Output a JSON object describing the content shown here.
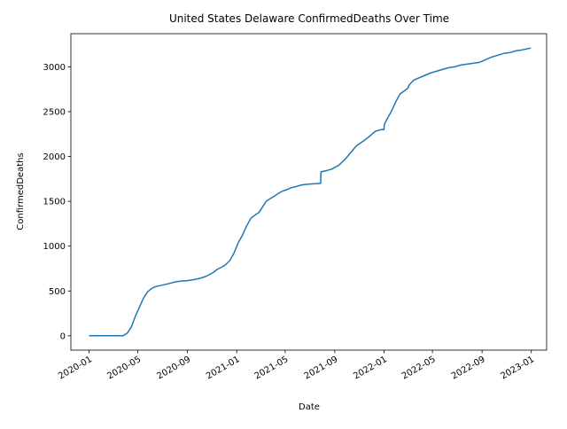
{
  "chart_data": {
    "type": "line",
    "title": "United States Delaware ConfirmedDeaths Over Time",
    "xlabel": "Date",
    "ylabel": "ConfirmedDeaths",
    "grid": false,
    "legend": "none",
    "xlim": [
      "2019-11-17",
      "2023-02-08"
    ],
    "ylim": [
      -160,
      3370
    ],
    "x_ticks": [
      "2020-01",
      "2020-05",
      "2020-09",
      "2021-01",
      "2021-05",
      "2021-09",
      "2022-01",
      "2022-05",
      "2022-09",
      "2023-01"
    ],
    "y_ticks": [
      0,
      500,
      1000,
      1500,
      2000,
      2500,
      3000
    ],
    "series": [
      {
        "color": "#1f77b4",
        "x": [
          "2020-01-01",
          "2020-03-25",
          "2020-04-05",
          "2020-04-15",
          "2020-04-25",
          "2020-05-05",
          "2020-05-15",
          "2020-05-25",
          "2020-06-05",
          "2020-06-15",
          "2020-06-25",
          "2020-07-15",
          "2020-08-01",
          "2020-08-15",
          "2020-09-01",
          "2020-09-15",
          "2020-10-01",
          "2020-10-15",
          "2020-10-25",
          "2020-11-05",
          "2020-11-15",
          "2020-11-25",
          "2020-12-05",
          "2020-12-15",
          "2020-12-25",
          "2021-01-05",
          "2021-01-15",
          "2021-01-25",
          "2021-02-05",
          "2021-02-15",
          "2021-02-25",
          "2021-03-05",
          "2021-03-15",
          "2021-03-25",
          "2021-04-05",
          "2021-04-15",
          "2021-04-25",
          "2021-05-05",
          "2021-05-15",
          "2021-05-25",
          "2021-06-05",
          "2021-06-15",
          "2021-06-25",
          "2021-07-10",
          "2021-07-28",
          "2021-07-29",
          "2021-08-10",
          "2021-08-25",
          "2021-09-10",
          "2021-09-25",
          "2021-10-10",
          "2021-10-25",
          "2021-11-10",
          "2021-11-25",
          "2021-12-10",
          "2021-12-25",
          "2022-01-01",
          "2022-01-02",
          "2022-01-10",
          "2022-01-20",
          "2022-01-30",
          "2022-02-10",
          "2022-02-20",
          "2022-03-01",
          "2022-03-05",
          "2022-03-15",
          "2022-03-25",
          "2022-04-10",
          "2022-04-25",
          "2022-05-10",
          "2022-05-25",
          "2022-06-10",
          "2022-06-25",
          "2022-07-10",
          "2022-07-25",
          "2022-08-10",
          "2022-08-25",
          "2022-09-10",
          "2022-09-25",
          "2022-10-10",
          "2022-10-25",
          "2022-11-10",
          "2022-11-25",
          "2022-12-10",
          "2022-12-31"
        ],
        "y": [
          0,
          0,
          30,
          100,
          220,
          320,
          420,
          490,
          530,
          550,
          560,
          580,
          600,
          610,
          615,
          625,
          640,
          660,
          680,
          710,
          745,
          765,
          795,
          840,
          920,
          1040,
          1120,
          1220,
          1310,
          1345,
          1375,
          1430,
          1500,
          1530,
          1560,
          1590,
          1615,
          1630,
          1650,
          1660,
          1675,
          1685,
          1690,
          1695,
          1700,
          1830,
          1840,
          1860,
          1900,
          1960,
          2040,
          2120,
          2170,
          2220,
          2280,
          2300,
          2300,
          2360,
          2430,
          2510,
          2610,
          2700,
          2730,
          2760,
          2800,
          2850,
          2870,
          2900,
          2930,
          2950,
          2970,
          2990,
          3000,
          3020,
          3030,
          3040,
          3050,
          3080,
          3110,
          3130,
          3150,
          3160,
          3180,
          3190,
          3210
        ]
      }
    ]
  }
}
